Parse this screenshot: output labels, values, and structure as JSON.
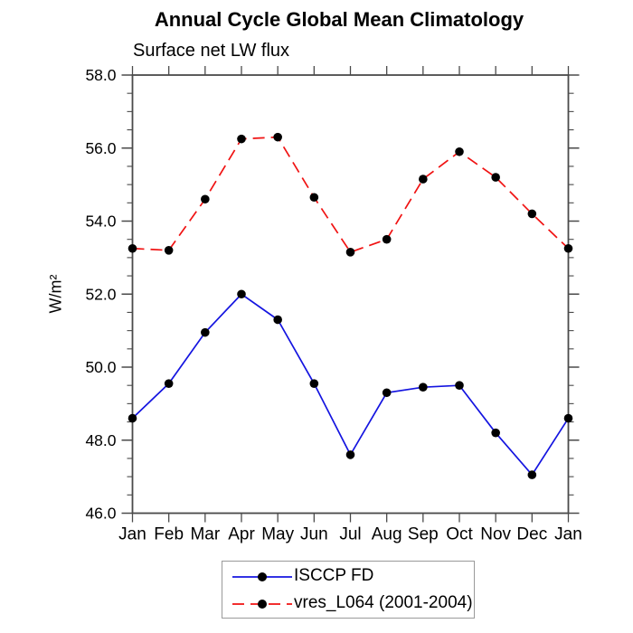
{
  "page": {
    "background": "#ffffff",
    "axis_color": "#4a4a4a",
    "text_color": "#000000"
  },
  "chart_data": {
    "type": "line",
    "title": "Annual Cycle Global Mean Climatology",
    "subtitle": "Surface net LW flux",
    "ylabel": "W/m²",
    "xlabel": "",
    "categories": [
      "Jan",
      "Feb",
      "Mar",
      "Apr",
      "May",
      "Jun",
      "Jul",
      "Aug",
      "Sep",
      "Oct",
      "Nov",
      "Dec",
      "Jan"
    ],
    "ylim": [
      46.0,
      58.0
    ],
    "y_major_step": 2.0,
    "y_minor_step": 0.5,
    "y_tick_labels": [
      "46.0",
      "48.0",
      "50.0",
      "52.0",
      "54.0",
      "56.0",
      "58.0"
    ],
    "grid": false,
    "legend_position": "bottom-center",
    "marker": "filled-circle",
    "marker_color": "#000000",
    "series": [
      {
        "name": "ISCCP FD",
        "color": "#1414e0",
        "line_style": "solid",
        "values": [
          48.6,
          49.55,
          50.95,
          52.0,
          51.3,
          49.55,
          47.6,
          49.3,
          49.45,
          49.5,
          48.2,
          47.05,
          48.6
        ]
      },
      {
        "name": "vres_L064 (2001-2004)",
        "color": "#f01212",
        "line_style": "dashed",
        "values": [
          53.25,
          53.2,
          54.6,
          56.25,
          56.3,
          54.65,
          53.15,
          53.5,
          55.15,
          55.9,
          55.2,
          54.2,
          53.25
        ]
      }
    ]
  }
}
